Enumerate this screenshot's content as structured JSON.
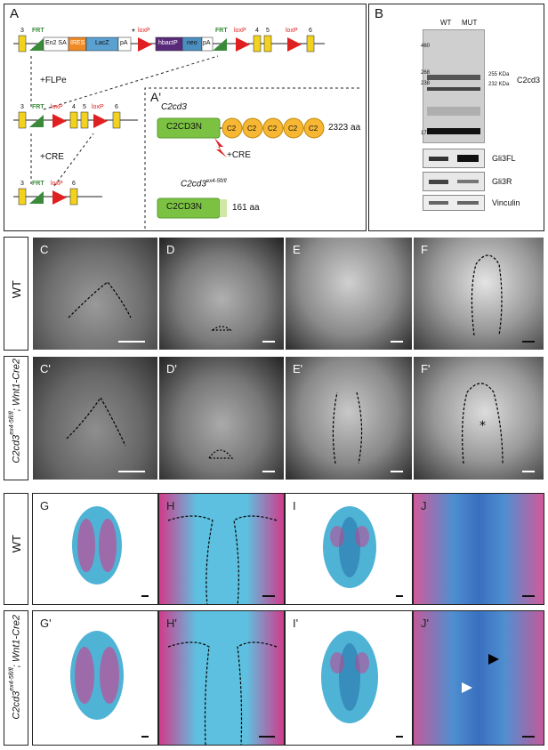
{
  "panelA": {
    "label": "A",
    "label_prime": "A'",
    "allele_top": {
      "exon3": "3",
      "frt1": "FRT",
      "en2": "En2 SA",
      "ires": "IRES",
      "lacz": "LacZ",
      "pa1": "pA",
      "star": "*",
      "loxp1": "loxP",
      "hbactp": "hbactP",
      "neo": "neo",
      "pa2": "pA",
      "frt2": "FRT",
      "loxp2": "loxP",
      "exon4": "4",
      "exon5": "5",
      "loxp3": "loxP",
      "exon6": "6"
    },
    "flpe": "+FLPe",
    "cre1": "+CRE",
    "allele_mid": {
      "exon3": "3",
      "frt": "FRT",
      "loxp1": "loxP",
      "exon4": "4",
      "exon5": "5",
      "loxp2": "loxP",
      "exon6": "6"
    },
    "allele_bot": {
      "exon3": "3",
      "frt": "FRT",
      "loxp": "loxP",
      "exon6": "6"
    },
    "protein_full_title": "C2cd3",
    "protein_full_domain": "C2CD3N",
    "c2_domains": [
      "C2",
      "C2",
      "C2",
      "C2",
      "C2"
    ],
    "protein_full_len": "2323 aa",
    "cre2": "+CRE",
    "protein_trunc_title": "C2cd3",
    "protein_trunc_sup": "ex4-5fl/fl",
    "protein_trunc_domain": "C2CD3N",
    "protein_trunc_len": "161 aa"
  },
  "panelB": {
    "label": "B",
    "lane_wt": "WT",
    "lane_mut": "MUT",
    "markers": [
      "460",
      "268",
      "238",
      "171"
    ],
    "kda1": "255 KDa",
    "kda2": "232 KDa",
    "protein": "C2cd3",
    "blots": [
      "Gli3FL",
      "Gli3R",
      "Vinculin"
    ]
  },
  "row_labels": {
    "wt1": "WT",
    "mut1_gene": "C2cd3",
    "mut1_sup": "ex4-5fl/fl",
    "mut1_cre": "; Wnt1-Cre2",
    "wt2": "WT",
    "mut2_gene": "C2cd3",
    "mut2_sup": "ex4-5fl/fl",
    "mut2_cre": "; Wnt1-Cre2"
  },
  "photo_labels": {
    "row1": [
      "C",
      "D",
      "E",
      "F"
    ],
    "row2": [
      "C'",
      "D'",
      "E'",
      "F'"
    ],
    "row3": [
      "G",
      "H",
      "I",
      "J"
    ],
    "row4": [
      "G'",
      "H'",
      "I'",
      "J'"
    ]
  },
  "colors": {
    "gfp_green": "#7cc242",
    "frt_green": "#3a8a3a",
    "loxp_red": "#e02020",
    "exon_yellow": "#f2d21e",
    "c2_orange": "#f7b733",
    "ires_orange": "#f08a24",
    "lacz_blue": "#5aa0d0",
    "hbactp_purple": "#5a2a7a",
    "neo_blue": "#4a8fc0",
    "alcian_blue": "#4fb3d6",
    "alizarin_red": "#d23a8a"
  }
}
